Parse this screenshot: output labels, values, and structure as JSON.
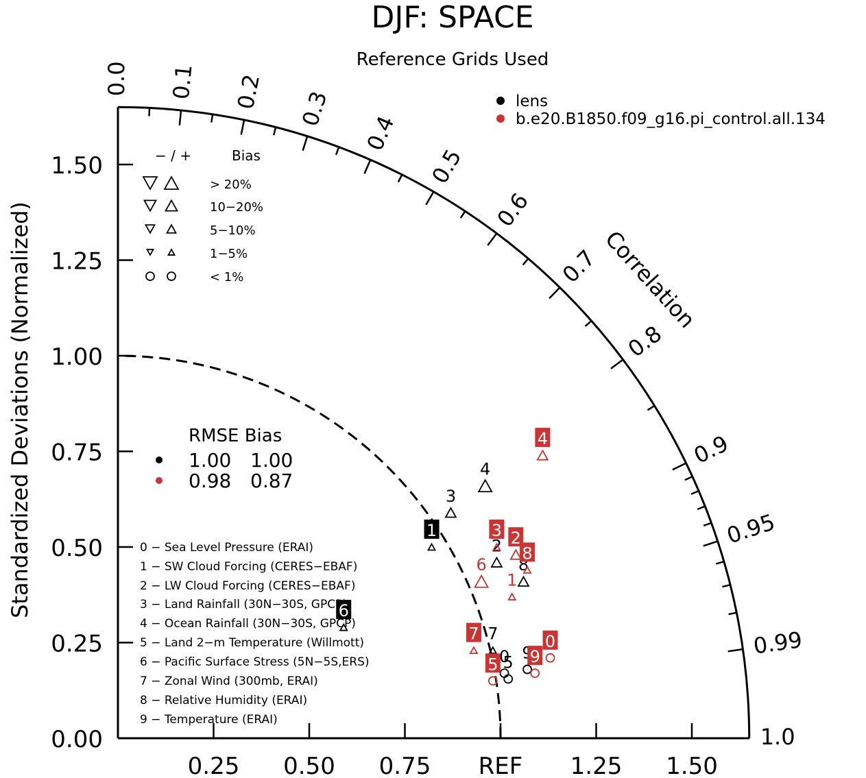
{
  "chart_data": {
    "type": "scatter",
    "title": "DJF: SPACE",
    "subtitle": "Reference Grids Used",
    "ylabel": "Standardized Deviations (Normalized)",
    "correlation_label": "Correlation",
    "ref_label": "REF",
    "xlim": [
      0,
      1.65
    ],
    "ylim": [
      0,
      1.65
    ],
    "y_ticks": [
      "0.00",
      "0.25",
      "0.50",
      "0.75",
      "1.00",
      "1.25",
      "1.50"
    ],
    "x_ticks": [
      "0.25",
      "0.50",
      "0.75",
      "REF",
      "1.25",
      "1.50"
    ],
    "corr_labels": [
      "0.0",
      "0.1",
      "0.2",
      "0.3",
      "0.4",
      "0.5",
      "0.6",
      "0.7",
      "0.8",
      "0.9",
      "0.95",
      "0.99",
      "1.0"
    ],
    "legend": [
      {
        "name": "lens",
        "color": "#000000"
      },
      {
        "name": "b.e20.B1850.f09_g16.pi_control.all.134",
        "color": "#cc3333"
      }
    ],
    "bias_key": {
      "header_sign": "−  /  +",
      "header_label": "Bias",
      "rows": [
        "> 20%",
        "10−20%",
        "5−10%",
        "1−5%",
        "< 1%"
      ]
    },
    "rmse_table": {
      "header": "RMSE Bias",
      "rows": [
        {
          "color": "#000000",
          "rmse": "1.00",
          "bias": "1.00"
        },
        {
          "color": "#cc3333",
          "rmse": "0.98",
          "bias": "0.87"
        }
      ]
    },
    "variables": [
      "0 − Sea Level Pressure (ERAI)",
      "1 − SW Cloud Forcing (CERES−EBAF)",
      "2 − LW Cloud Forcing (CERES−EBAF)",
      "3 − Land Rainfall (30N−30S, GPCP)",
      "4 − Ocean Rainfall (30N−30S, GPCP)",
      "5 − Land 2−m Temperature (Willmott)",
      "6 − Pacific Surface Stress (5N−5S,ERS)",
      "7 − Zonal Wind (300mb, ERAI)",
      "8 − Relative Humidity (ERAI)",
      "9 − Temperature (ERAI)"
    ],
    "series": [
      {
        "name": "lens",
        "color": "#000000",
        "points": [
          {
            "label": "0",
            "x": 1.01,
            "y": 0.17,
            "marker": "circle-small",
            "boxed": false
          },
          {
            "label": "1",
            "x": 0.82,
            "y": 0.5,
            "marker": "up-small",
            "boxed": true
          },
          {
            "label": "2",
            "x": 0.99,
            "y": 0.46,
            "marker": "up-mid",
            "boxed": false
          },
          {
            "label": "3",
            "x": 0.87,
            "y": 0.59,
            "marker": "up-mid",
            "boxed": false
          },
          {
            "label": "4",
            "x": 0.96,
            "y": 0.66,
            "marker": "up-large",
            "boxed": false
          },
          {
            "label": "5",
            "x": 1.02,
            "y": 0.155,
            "marker": "circle-small",
            "boxed": false
          },
          {
            "label": "6",
            "x": 0.59,
            "y": 0.29,
            "marker": "up-small",
            "boxed": true
          },
          {
            "label": "7",
            "x": 0.98,
            "y": 0.23,
            "marker": "up-small",
            "boxed": false
          },
          {
            "label": "8",
            "x": 1.06,
            "y": 0.41,
            "marker": "up-mid",
            "boxed": false
          },
          {
            "label": "9",
            "x": 1.07,
            "y": 0.18,
            "marker": "circle-small",
            "boxed": false
          }
        ]
      },
      {
        "name": "b.e20.B1850.f09_g16.pi_control.all.134",
        "color": "#cc3333",
        "points": [
          {
            "label": "0",
            "x": 1.13,
            "y": 0.21,
            "marker": "circle-small",
            "boxed": true
          },
          {
            "label": "1",
            "x": 1.03,
            "y": 0.37,
            "marker": "up-small",
            "boxed": false
          },
          {
            "label": "2",
            "x": 1.04,
            "y": 0.48,
            "marker": "up-mid",
            "boxed": true
          },
          {
            "label": "3",
            "x": 0.99,
            "y": 0.5,
            "marker": "up-small",
            "boxed": true
          },
          {
            "label": "4",
            "x": 1.11,
            "y": 0.74,
            "marker": "up-mid",
            "boxed": true
          },
          {
            "label": "5",
            "x": 0.98,
            "y": 0.15,
            "marker": "circle-small",
            "boxed": true
          },
          {
            "label": "6",
            "x": 0.95,
            "y": 0.41,
            "marker": "up-large",
            "boxed": false
          },
          {
            "label": "7",
            "x": 0.93,
            "y": 0.23,
            "marker": "up-small",
            "boxed": true
          },
          {
            "label": "8",
            "x": 1.07,
            "y": 0.44,
            "marker": "up-small",
            "boxed": true
          },
          {
            "label": "9",
            "x": 1.09,
            "y": 0.17,
            "marker": "circle-small",
            "boxed": true
          }
        ]
      }
    ]
  }
}
